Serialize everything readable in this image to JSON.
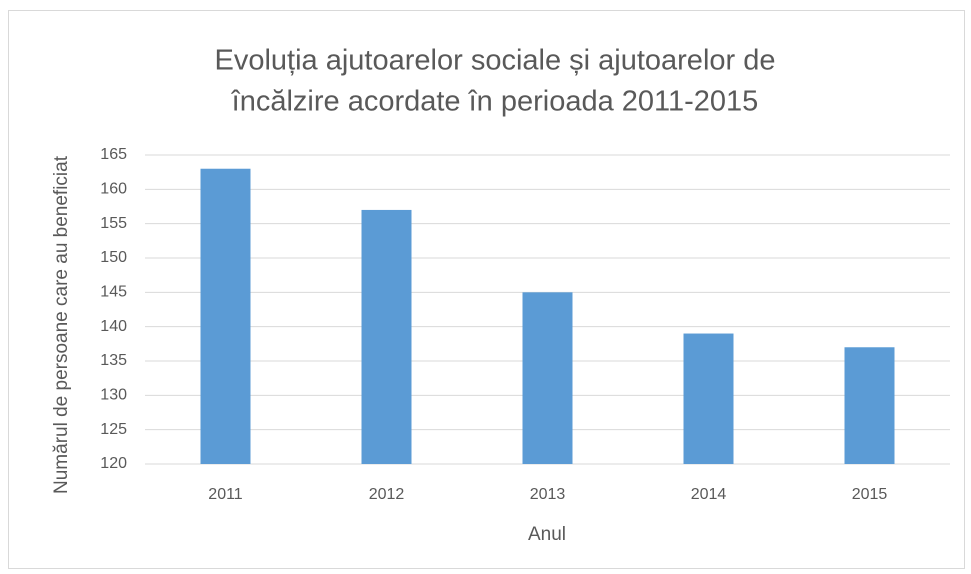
{
  "chart_data": {
    "type": "bar",
    "title": [
      "Evoluția ajutoarelor sociale și ajutoarelor de",
      "încălzire acordate în perioada 2011-2015"
    ],
    "x_label": "Anul",
    "y_label": "Numărul de persoane care au beneficiat",
    "categories": [
      "2011",
      "2012",
      "2013",
      "2014",
      "2015"
    ],
    "values": [
      163,
      157,
      145,
      139,
      137
    ],
    "color": "#5b9bd5",
    "ylim": [
      120,
      165
    ],
    "yticks": [
      120,
      125,
      130,
      135,
      140,
      145,
      150,
      155,
      160,
      165
    ],
    "grid": true
  }
}
